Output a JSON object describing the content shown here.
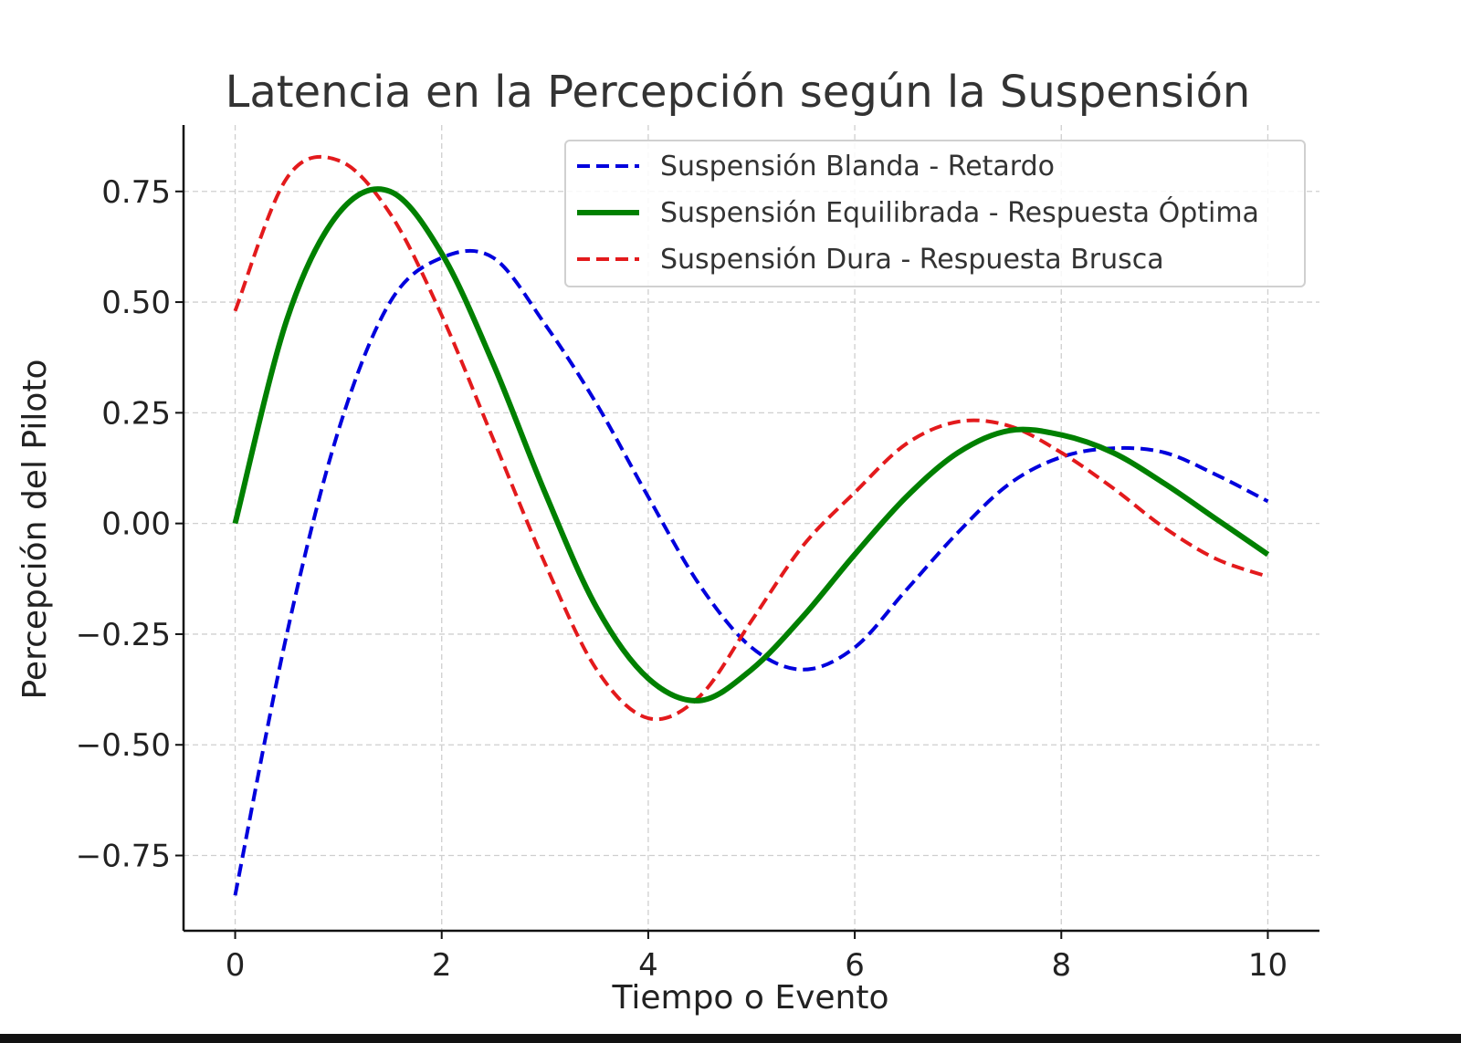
{
  "chart_data": {
    "type": "line",
    "title": "Latencia en la Percepción según la Suspensión",
    "xlabel": "Tiempo o Evento",
    "ylabel": "Percepción del Piloto",
    "xlim": [
      -0.5,
      10.5
    ],
    "ylim": [
      -0.92,
      0.9
    ],
    "xticks": [
      0,
      2,
      4,
      6,
      8,
      10
    ],
    "xtick_labels": [
      "0",
      "2",
      "4",
      "6",
      "8",
      "10"
    ],
    "yticks": [
      -0.75,
      -0.5,
      -0.25,
      0.0,
      0.25,
      0.5,
      0.75
    ],
    "ytick_labels": [
      "−0.75",
      "−0.50",
      "−0.25",
      "0.00",
      "0.25",
      "0.50",
      "0.75"
    ],
    "grid": true,
    "legend_position": "top-right",
    "x": [
      0,
      0.5,
      1,
      1.5,
      2,
      2.5,
      3,
      3.5,
      4,
      4.5,
      5,
      5.5,
      6,
      6.5,
      7,
      7.5,
      8,
      8.5,
      9,
      9.5,
      10
    ],
    "series": [
      {
        "name": "Suspensión Blanda - Retardo",
        "color": "#0000dd",
        "style": "dashed",
        "values": [
          -0.84,
          -0.25,
          0.21,
          0.5,
          0.6,
          0.6,
          0.45,
          0.27,
          0.06,
          -0.14,
          -0.28,
          -0.33,
          -0.28,
          -0.15,
          -0.02,
          0.09,
          0.15,
          0.17,
          0.16,
          0.11,
          0.05
        ]
      },
      {
        "name": "Suspensión Equilibrada - Respuesta Óptima",
        "color": "#008000",
        "style": "solid",
        "values": [
          0.0,
          0.46,
          0.7,
          0.75,
          0.61,
          0.36,
          0.07,
          -0.19,
          -0.35,
          -0.4,
          -0.33,
          -0.21,
          -0.07,
          0.06,
          0.16,
          0.21,
          0.2,
          0.16,
          0.09,
          0.01,
          -0.07
        ]
      },
      {
        "name": "Suspensión Dura - Respuesta Brusca",
        "color": "#e31a1c",
        "style": "dashed",
        "values": [
          0.48,
          0.78,
          0.82,
          0.7,
          0.47,
          0.19,
          -0.09,
          -0.33,
          -0.44,
          -0.39,
          -0.22,
          -0.05,
          0.07,
          0.18,
          0.23,
          0.22,
          0.16,
          0.08,
          -0.01,
          -0.08,
          -0.12
        ]
      }
    ]
  }
}
